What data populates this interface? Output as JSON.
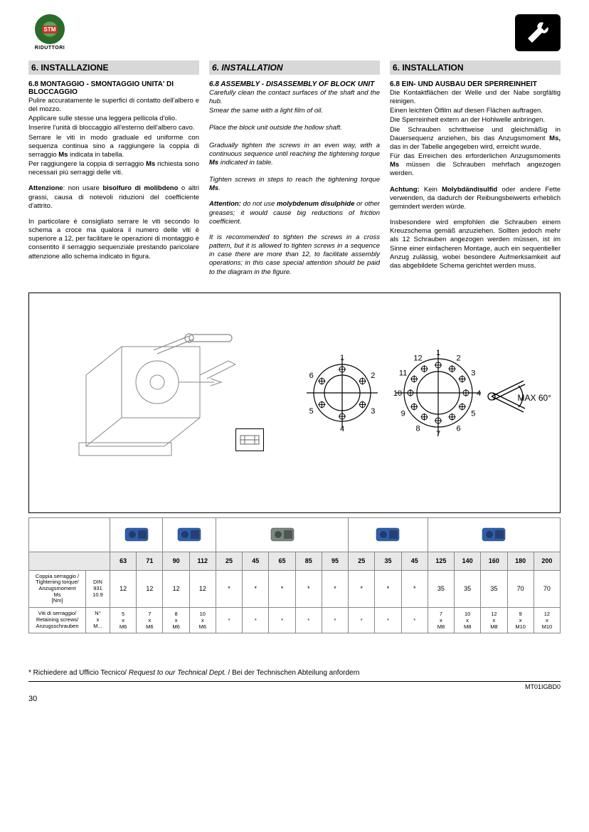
{
  "logo_sub": "RIDUTTORI",
  "logo_badge": "STM",
  "col_it": {
    "title": "6. INSTALLAZIONE",
    "h1": "6.8 MONTAGGIO - SMONTAGGIO UNITA' DI BLOCCAGGIO",
    "p1": "Pulire accuratamente le superfici di contatto dell'albero e del mozzo.",
    "p2": "Applicare sulle stesse una leggera pellicola d'olio.",
    "p3": "Inserire l'unità di bloccaggio all'esterno dell'albero cavo.",
    "p4a": "Serrare le viti in modo graduale ed uniforme con sequenza continua sino a raggiungere la coppia di serraggio ",
    "p4b": " indicata in tabella.",
    "p5a": "Per raggiungere la coppia di serraggio ",
    "p5b": " richiesta sono necessari più serraggi delle viti.",
    "attn_lead": "Attenzione",
    "attn_mid": ": non usare ",
    "attn_bold": "bisolfuro di molibdeno",
    "attn_tail": " o altri grassi, causa di notevoli riduzioni del coefficiente d'attrito.",
    "p6": "In particolare è consigliato serrare le viti secondo lo schema a croce ma qualora il numero delle viti è superiore a 12, per facilitare le operazioni di montaggio è consentito il serraggio sequenziale prestando paricolare attenzione allo schema indicato in figura."
  },
  "col_en": {
    "title": "6. INSTALLATION",
    "h1": "6.8 ASSEMBLY - DISASSEMBLY OF BLOCK UNIT",
    "p1": "Carefully clean the contact surfaces of the shaft and the hub.",
    "p2": "Smear the same with a light film of oil.",
    "p3": "Place the block unit outside the hollow shaft.",
    "p4a": "Gradually tighten the screws in an even way, with a continuous sequence until reaching the tightening torque ",
    "p4b": " indicated in table.",
    "p5a": "Tighten screws in steps to reach the tightening torque ",
    "p5b": ".",
    "attn_lead": "Attention:",
    "attn_mid": " do not use ",
    "attn_bold": "molybdenum disulphide",
    "attn_tail": " or other greases; it would cause big reductions of friction coefficient.",
    "p6": "It is recommended to tighten the screws in a cross pattern, but it is allowed to tighten screws in a sequence in case there are more than 12, to facilitate assembly operations; in this case special attention should be paid to the diagram in the figure."
  },
  "col_de": {
    "title": "6. INSTALLATION",
    "h1": "6.8 EIN- UND AUSBAU DER SPERREINHEIT",
    "p1": "Die Kontaktflächen der Welle und der Nabe sorgfältig reinigen.",
    "p2": "Einen leichten Ölfilm auf diesen Flächen auftragen.",
    "p3": "Die Sperreinheit extern an der Hohlwelle anbringen.",
    "p4a": "Die Schrauben schrittweise und gleichmäßig in Dauersequenz anziehen, bis das Anzugsmoment ",
    "p4b": " das in der Tabelle angegeben wird, erreicht wurde.",
    "p5a": "Für das Erreichen des erforderlichen Anzugsmoments ",
    "p5b": " müssen die Schrauben mehrfach angezogen werden.",
    "attn_lead": "Achtung:",
    "attn_mid": " Kein ",
    "attn_bold": "Molybdändisulfid",
    "attn_tail": " oder andere Fette verwenden, da dadurch der Reibungsbeiwerts erheblich gemindert werden würde.",
    "p6": "Insbesondere wird empfohlen die Schrauben einem Kreuzschema gemäß anzuziehen. Sollten jedoch mehr als 12 Schrauben angezogen werden müssen, ist im Sinne einer einfacheren Montage, auch ein sequentieller Anzug zulässig, wobei besondere Aufmerksamkeit auf das abgebildete Schema gerichtet werden muss."
  },
  "ms": "Ms",
  "ms_comma": "Ms,",
  "max_angle": "MAX 60°",
  "table": {
    "sizes": [
      "63",
      "71",
      "90",
      "112",
      "25",
      "45",
      "65",
      "85",
      "95",
      "25",
      "35",
      "45",
      "125",
      "140",
      "160",
      "180",
      "200"
    ],
    "row1_label": "Coppia serraggio /\nTightening torque/\nAnzugsmoment\nMs\n[Nm]",
    "row1_spec": "DIN\n931\n10.9",
    "row1": [
      "12",
      "12",
      "12",
      "12",
      "*",
      "*",
      "*",
      "*",
      "*",
      "*",
      "*",
      "*",
      "35",
      "35",
      "35",
      "70",
      "70"
    ],
    "row2_label": "Viti di serraggio/\nRetaining screws/\nAnzugsschrauben",
    "row2_spec": "N°\nx\nM...",
    "row2": [
      "5\nx\nM6",
      "7\nx\nM6",
      "8\nx\nM6",
      "10\nx\nM6",
      "*",
      "*",
      "*",
      "*",
      "*",
      "*",
      "*",
      "*",
      "7\nx\nM8",
      "10\nx\nM8",
      "12\nx\nM8",
      "9\nx\nM10",
      "12\nx\nM10"
    ],
    "img_groups": [
      {
        "span": 2,
        "color": "#2b5fb0"
      },
      {
        "span": 2,
        "color": "#2b5fb0"
      },
      {
        "span": 5,
        "color": "#7a8a7a"
      },
      {
        "span": 3,
        "color": "#2b5fb0"
      },
      {
        "span": 5,
        "color": "#2b5fb0"
      }
    ]
  },
  "footnote_it": "* Richiedere ad Ufficio Tecnico/ ",
  "footnote_en": "Request to our Technical Dept.",
  "footnote_de": " /  Bei der Technischen Abteilung anfordern",
  "doc_code": "MT01IGBD0",
  "page_num": "30",
  "circle6": {
    "labels": [
      "1",
      "2",
      "3",
      "4",
      "5",
      "6"
    ]
  },
  "circle12": {
    "labels": [
      "1",
      "2",
      "3",
      "4",
      "5",
      "6",
      "7",
      "8",
      "9",
      "10",
      "11",
      "12"
    ]
  }
}
